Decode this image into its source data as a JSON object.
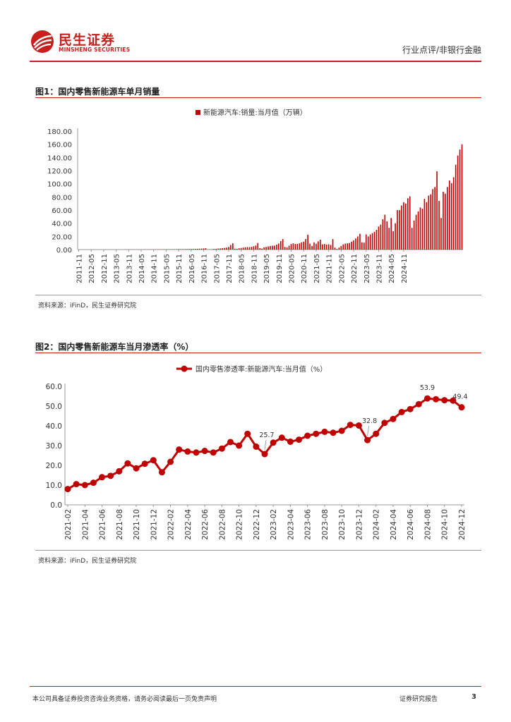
{
  "header": {
    "logo_cn": "民生证券",
    "logo_en": "MINSHENG SECURITIES",
    "doc_type": "行业点评/非银行金融"
  },
  "figure1": {
    "title": "图1：国内零售新能源车单月销量",
    "source": "资料来源：iFinD，民生证券研究院"
  },
  "figure2": {
    "title": "图2：国内零售新能源车当月渗透率（%）",
    "source": "资料来源：iFinD，民生证券研究院"
  },
  "footer": {
    "disclaimer": "本公司具备证券投资咨询业务资格，请务必阅读最后一页免责声明",
    "report_type": "证券研究报告",
    "page": "3"
  },
  "colors": {
    "brand": "#c81e1e",
    "series": "#c00000"
  },
  "chart_data": [
    {
      "type": "bar",
      "legend": "新能源汽车:销量:当月值（万辆）",
      "legend_position": "top-center",
      "ylim": [
        0,
        180
      ],
      "yticks": [
        "0.00",
        "20.00",
        "40.00",
        "60.00",
        "80.00",
        "100.00",
        "120.00",
        "140.00",
        "160.00",
        "180.00"
      ],
      "xtick_labels": [
        "2011-11",
        "2012-05",
        "2012-11",
        "2013-05",
        "2013-11",
        "2014-05",
        "2014-11",
        "2015-05",
        "2015-11",
        "2016-05",
        "2016-11",
        "2017-05",
        "2017-11",
        "2018-05",
        "2018-11",
        "2019-05",
        "2019-11",
        "2020-05",
        "2020-11",
        "2021-05",
        "2021-11",
        "2022-05",
        "2022-11",
        "2023-05",
        "2023-11",
        "2024-05",
        "2024-11"
      ],
      "start": "2011-11",
      "values": [
        0.05,
        0.05,
        0.05,
        0.05,
        0.05,
        0.1,
        0.1,
        0.1,
        0.1,
        0.1,
        0.1,
        0.1,
        0.1,
        0.1,
        0.1,
        0.1,
        0.1,
        0.1,
        0.1,
        0.1,
        0.1,
        0.2,
        0.2,
        0.2,
        0.2,
        0.2,
        0.2,
        0.2,
        0.2,
        0.2,
        0.2,
        0.2,
        0.3,
        0.3,
        0.3,
        0.3,
        0.3,
        0.4,
        0.4,
        0.4,
        0.4,
        0.5,
        0.5,
        0.5,
        0.5,
        0.5,
        0.6,
        0.6,
        0.7,
        0.7,
        0.7,
        0.8,
        0.8,
        0.9,
        0.9,
        1.0,
        1.1,
        1.2,
        1.3,
        1.5,
        1.8,
        2.1,
        0.3,
        0.4,
        0.6,
        1.0,
        1.2,
        1.5,
        1.8,
        2.2,
        2.5,
        3.0,
        4.0,
        7.0,
        9.5,
        1.3,
        1.2,
        2.0,
        2.5,
        3.0,
        3.5,
        3.8,
        3.7,
        4.2,
        5.0,
        6.0,
        10.0,
        2.2,
        1.5,
        3.5,
        4.0,
        4.8,
        5.5,
        5.8,
        6.0,
        7.5,
        9.2,
        13.0,
        16.0,
        4.0,
        3.2,
        6.0,
        8.5,
        9.5,
        8.5,
        8.8,
        9.5,
        11.0,
        12.0,
        16.0,
        22.6,
        9.0,
        5.5,
        11.0,
        9.0,
        12.5,
        15.0,
        8.0,
        8.5,
        7.5,
        8.0,
        7.0,
        16.0,
        3.0,
        1.0,
        3.0,
        5.5,
        8.0,
        9.0,
        9.5,
        10.0,
        12.0,
        14.0,
        17.0,
        20.0,
        24.0,
        11.0,
        10.5,
        23.0,
        20.0,
        23.0,
        25.0,
        27.0,
        30.0,
        35.0,
        38.0,
        46.0,
        53.0,
        43.0,
        33.0,
        48.0,
        28.0,
        40.0,
        60.0,
        60.0,
        67.0,
        72.0,
        70.0,
        78.0,
        81.0,
        33.0,
        44.0,
        53.0,
        58.0,
        64.0,
        62.0,
        77.0,
        72.0,
        82.0,
        84.0,
        92.0,
        95.0,
        119.0,
        74.0,
        48.0,
        88.0,
        85.0,
        95.0,
        105.0,
        101.0,
        110.0,
        129.0,
        143.0,
        152.0,
        160.0
      ]
    },
    {
      "type": "line",
      "legend": "国内零售渗透率:新能源汽车:当月值（%）",
      "legend_position": "top-center",
      "ylim": [
        0,
        60
      ],
      "yticks": [
        "0.0",
        "10.0",
        "20.0",
        "30.0",
        "40.0",
        "50.0",
        "60.0"
      ],
      "x": [
        "2021-02",
        "2021-03",
        "2021-04",
        "2021-05",
        "2021-06",
        "2021-07",
        "2021-08",
        "2021-09",
        "2021-10",
        "2021-11",
        "2021-12",
        "2022-01",
        "2022-02",
        "2022-03",
        "2022-04",
        "2022-05",
        "2022-06",
        "2022-07",
        "2022-08",
        "2022-09",
        "2022-10",
        "2022-11",
        "2022-12",
        "2023-01",
        "2023-02",
        "2023-03",
        "2023-04",
        "2023-05",
        "2023-06",
        "2023-07",
        "2023-08",
        "2023-09",
        "2023-10",
        "2023-11",
        "2023-12",
        "2024-01",
        "2024-02",
        "2024-03",
        "2024-04",
        "2024-05",
        "2024-06",
        "2024-07",
        "2024-08",
        "2024-09",
        "2024-10",
        "2024-11",
        "2024-12"
      ],
      "xtick_labels": [
        "2021-02",
        "2021-04",
        "2021-06",
        "2021-08",
        "2021-10",
        "2021-12",
        "2022-02",
        "2022-04",
        "2022-06",
        "2022-08",
        "2022-10",
        "2022-12",
        "2023-02",
        "2023-04",
        "2023-06",
        "2023-08",
        "2023-10",
        "2023-12",
        "2024-02",
        "2024-04",
        "2024-06",
        "2024-08",
        "2024-10",
        "2024-12"
      ],
      "values": [
        8.0,
        10.5,
        10.0,
        11.2,
        14.0,
        14.7,
        17.0,
        21.0,
        18.5,
        20.8,
        22.6,
        16.5,
        21.8,
        28.0,
        27.0,
        26.5,
        27.3,
        26.5,
        28.5,
        31.8,
        30.0,
        36.0,
        29.5,
        25.7,
        31.5,
        34.0,
        32.0,
        33.0,
        35.0,
        36.0,
        37.0,
        36.5,
        37.5,
        40.5,
        40.2,
        32.8,
        36.0,
        41.5,
        43.5,
        47.0,
        48.5,
        51.0,
        53.9,
        53.5,
        53.0,
        52.8,
        49.4
      ],
      "annotations": [
        {
          "x": "2023-01",
          "label": "25.7"
        },
        {
          "x": "2024-01",
          "label": "32.8"
        },
        {
          "x": "2024-08",
          "label": "53.9"
        },
        {
          "x": "2024-12",
          "label": "49.4"
        }
      ]
    }
  ]
}
